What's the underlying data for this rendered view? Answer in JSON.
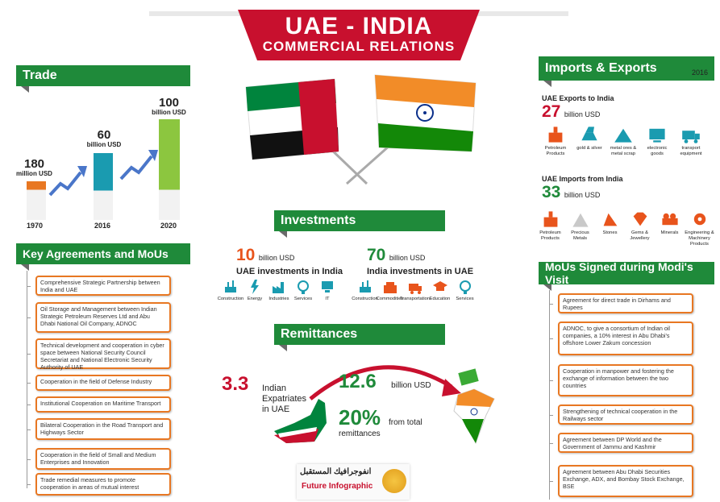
{
  "title": {
    "line1": "UAE - INDIA",
    "line2": "COMMERCIAL  RELATIONS"
  },
  "colors": {
    "green": "#1f8a3a",
    "red": "#c8102e",
    "orange": "#e87722",
    "grey": "#6a6a6a"
  },
  "trade": {
    "heading": "Trade",
    "bars": [
      {
        "value": "180",
        "unit": "million USD",
        "year": "1970",
        "amount_musd": 180
      },
      {
        "value": "60",
        "unit": "billion USD",
        "year": "2016",
        "amount_musd": 60000
      },
      {
        "value": "100",
        "unit": "billion USD",
        "year": "2020",
        "amount_musd": 100000
      }
    ]
  },
  "agreements": {
    "heading": "Key Agreements and MoUs",
    "items": [
      "Comprehensive Strategic Partnership between India and UAE",
      "Oil Storage and Management between Indian Strategic Petroleum Reserves Ltd and Abu Dhabi National Oil Company, ADNOC",
      "Technical development and cooperation in cyber space between National Security Council Secretariat and National Electronic Security Authority of UAE",
      "Cooperation in the field of Defense Industry",
      "Institutional Cooperation on Maritime Transport",
      "Bilateral Cooperation in the Road Transport and Highways Sector",
      "Cooperation in the field of Small and Medium Enterprises and Innovation",
      "Trade remedial measures to promote cooperation in areas of mutual interest"
    ]
  },
  "investments": {
    "heading": "Investments",
    "uae": {
      "value": "10",
      "unit": "billion USD",
      "label": "UAE investments in India",
      "icons": [
        {
          "name": "construction-icon",
          "label": "Construction"
        },
        {
          "name": "energy-icon",
          "label": "Energy"
        },
        {
          "name": "industries-icon",
          "label": "Industries"
        },
        {
          "name": "services-icon",
          "label": "Services"
        },
        {
          "name": "it-icon",
          "label": "IT"
        }
      ]
    },
    "india": {
      "value": "70",
      "unit": "billion USD",
      "label": "India investments in UAE",
      "icons": [
        {
          "name": "construction-icon",
          "label": "Construction"
        },
        {
          "name": "commodities-icon",
          "label": "Commodities"
        },
        {
          "name": "transportation-icon",
          "label": "Transportation"
        },
        {
          "name": "education-icon",
          "label": "Education"
        },
        {
          "name": "services-icon",
          "label": "Services"
        }
      ]
    }
  },
  "remittances": {
    "heading": "Remittances",
    "expat_value": "3.3",
    "expat_label": "Indian Expatriates in UAE",
    "amount_value": "12.6",
    "amount_unit": "billion USD",
    "share_value": "20%",
    "share_label": "from total remittances"
  },
  "trade_flows": {
    "heading": "Imports & Exports",
    "year": "2016",
    "exports": {
      "label": "UAE Exports to India",
      "value": "27",
      "unit": "billion USD",
      "icons": [
        {
          "name": "petroleum-icon",
          "label": "Petroleum Products"
        },
        {
          "name": "gold-icon",
          "label": "gold & silver"
        },
        {
          "name": "metal-icon",
          "label": "metal ores & metal scrap"
        },
        {
          "name": "electronics-icon",
          "label": "electronic goods"
        },
        {
          "name": "transport-icon",
          "label": "transport equipment"
        }
      ]
    },
    "imports": {
      "label": "UAE Imports from India",
      "value": "33",
      "unit": "billion USD",
      "icons": [
        {
          "name": "petroleum-icon",
          "label": "Petroleum Products"
        },
        {
          "name": "precious-metals-icon",
          "label": "Precious Metals"
        },
        {
          "name": "stones-icon",
          "label": "Stones"
        },
        {
          "name": "gems-icon",
          "label": "Gems & Jewellery"
        },
        {
          "name": "minerals-icon",
          "label": "Minerals"
        },
        {
          "name": "machinery-icon",
          "label": "Engineering & Machinery Products"
        }
      ]
    }
  },
  "mous_visit": {
    "heading": "MoUs Signed during Modi's Visit",
    "items": [
      "Agreement for direct trade in Dirhams and Rupees",
      "ADNOC, to give a consortium of Indian oil companies, a 10% interest in Abu Dhabi's offshore Lower Zakum concession",
      "Cooperation in manpower and fostering the exchange of information between the two countries",
      "Strengthening of technical cooperation in the Railways sector",
      "Agreement between DP World and the Government of Jammu and Kashmir",
      "Agreement between Abu Dhabi Securities Exchange, ADX, and Bombay Stock Exchange, BSE"
    ]
  },
  "logo": {
    "arabic": "انفوجرافيك المستقبل",
    "english_1": "Future ",
    "english_2": "Infographic"
  }
}
